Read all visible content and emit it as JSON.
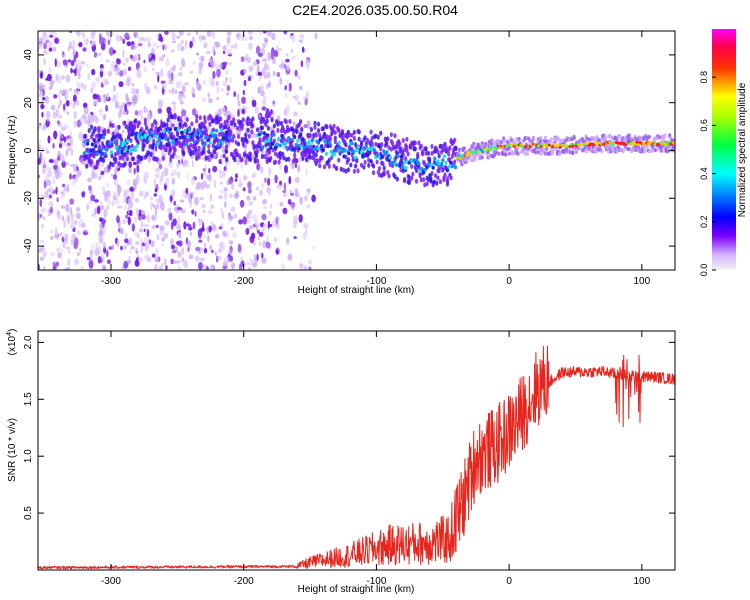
{
  "title": "C2E4.2026.035.00.50.R04",
  "colors": {
    "snr_line": "#e8241c",
    "frame": "#000000"
  },
  "chart_data": [
    {
      "type": "heatmap",
      "name": "spectrogram",
      "xlabel": "Height of straight line (km)",
      "ylabel": "Frequency (Hz)",
      "xlim": [
        -355,
        125
      ],
      "ylim": [
        -50,
        50
      ],
      "xticks": [
        -300,
        -200,
        -100,
        0,
        100
      ],
      "yticks": [
        -40,
        -20,
        0,
        20,
        40
      ],
      "colorbar": {
        "label": "Normalized spectral amplitude",
        "range": [
          0,
          1
        ],
        "ticks": [
          0.0,
          0.2,
          0.4,
          0.6,
          0.8
        ],
        "colormap": [
          "#f2f2f2",
          "#7d00ff",
          "#0000ff",
          "#00ffff",
          "#00ff00",
          "#ffff00",
          "#ff0000",
          "#ff00ff"
        ]
      },
      "ridge": [
        {
          "x": -300,
          "f": 2
        },
        {
          "x": -250,
          "f": 6
        },
        {
          "x": -210,
          "f": 5
        },
        {
          "x": -180,
          "f": 4
        },
        {
          "x": -150,
          "f": 3
        },
        {
          "x": -120,
          "f": 0
        },
        {
          "x": -90,
          "f": -2
        },
        {
          "x": -60,
          "f": -7
        },
        {
          "x": -45,
          "f": -5
        },
        {
          "x": -30,
          "f": -1
        },
        {
          "x": -10,
          "f": 1
        },
        {
          "x": 0,
          "f": 2
        },
        {
          "x": 40,
          "f": 2
        },
        {
          "x": 80,
          "f": 3
        },
        {
          "x": 125,
          "f": 3
        }
      ]
    },
    {
      "type": "line",
      "name": "snr",
      "xlabel": "Height of straight line (km)",
      "ylabel": "SNR (10 * v/v)",
      "multiplier_label": "(x10",
      "multiplier_exp": "4",
      "multiplier_close": ")",
      "xlim": [
        -355,
        125
      ],
      "ylim": [
        0,
        2.1
      ],
      "xticks": [
        -300,
        -200,
        -100,
        0,
        100
      ],
      "yticks": [
        0.5,
        1.0,
        1.5,
        2.0
      ],
      "ytick_labels": [
        "0.5",
        "1.0",
        "1.5",
        "2.0"
      ],
      "envelope": [
        {
          "x": -355,
          "y": 0.02
        },
        {
          "x": -160,
          "y": 0.03
        },
        {
          "x": -150,
          "y": 0.06
        },
        {
          "x": -120,
          "y": 0.12
        },
        {
          "x": -90,
          "y": 0.2
        },
        {
          "x": -60,
          "y": 0.22
        },
        {
          "x": -45,
          "y": 0.25
        },
        {
          "x": -35,
          "y": 0.55
        },
        {
          "x": -25,
          "y": 0.95
        },
        {
          "x": -10,
          "y": 1.05
        },
        {
          "x": 5,
          "y": 1.25
        },
        {
          "x": 20,
          "y": 1.55
        },
        {
          "x": 40,
          "y": 1.73
        },
        {
          "x": 70,
          "y": 1.74
        },
        {
          "x": 90,
          "y": 1.7
        },
        {
          "x": 110,
          "y": 1.69
        },
        {
          "x": 125,
          "y": 1.67
        }
      ]
    }
  ]
}
